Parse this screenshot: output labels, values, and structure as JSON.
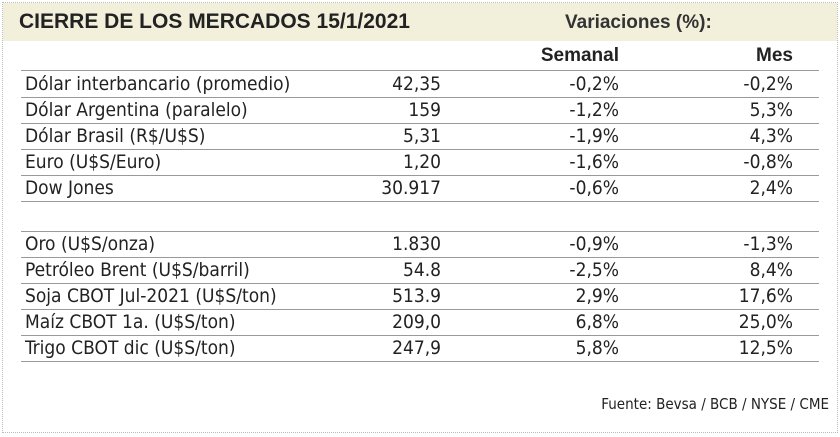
{
  "header": {
    "title": "CIERRE DE LOS MERCADOS 15/1/2021",
    "subtitle": "Variaciones (%):"
  },
  "table": {
    "columns": [
      "Semanal",
      "Mes"
    ],
    "groups": [
      {
        "rows": [
          [
            "Dólar interbancario (promedio)",
            "42,35",
            "-0,2%",
            "-0,2%"
          ],
          [
            "Dólar Argentina (paralelo)",
            "159",
            "-1,2%",
            "5,3%"
          ],
          [
            "Dólar Brasil (R$/U$S)",
            "5,31",
            "-1,9%",
            "4,3%"
          ],
          [
            "Euro (U$S/Euro)",
            "1,20",
            "-1,6%",
            "-0,8%"
          ],
          [
            "Dow Jones",
            "30.917",
            "-0,6%",
            "2,4%"
          ]
        ]
      },
      {
        "rows": [
          [
            "Oro (U$S/onza)",
            "1.830",
            "-0,9%",
            "-1,3%"
          ],
          [
            "Petróleo Brent (U$S/barril)",
            "54.8",
            "-2,5%",
            "8,4%"
          ],
          [
            "Soja CBOT Jul-2021 (U$S/ton)",
            "513.9",
            "2,9%",
            "17,6%"
          ],
          [
            "Maíz CBOT 1a. (U$S/ton)",
            "209,0",
            "6,8%",
            "25,0%"
          ],
          [
            "Trigo CBOT dic (U$S/ton)",
            "247,9",
            "5,8%",
            "12,5%"
          ]
        ]
      }
    ]
  },
  "footer": {
    "source": "Fuente: Bevsa / BCB / NYSE / CME"
  }
}
